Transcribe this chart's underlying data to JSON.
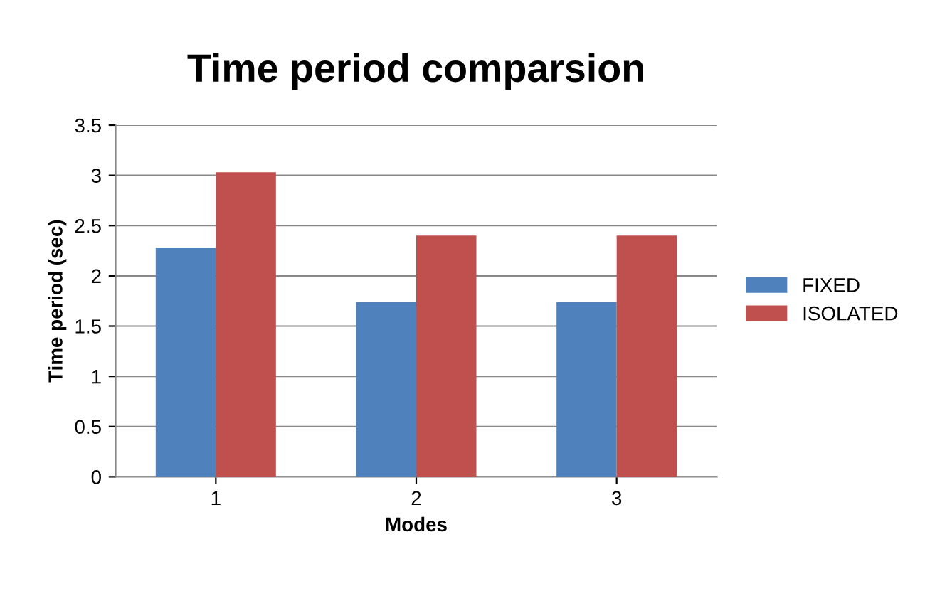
{
  "chart_data": {
    "type": "bar",
    "title": "Time period comparsion",
    "xlabel": "Modes",
    "ylabel": "Time period (sec)",
    "categories": [
      "1",
      "2",
      "3"
    ],
    "series": [
      {
        "name": "FIXED",
        "color": "#4f81bd",
        "values": [
          2.28,
          1.74,
          1.74
        ]
      },
      {
        "name": "ISOLATED",
        "color": "#c0504d",
        "values": [
          3.03,
          2.4,
          2.4
        ]
      }
    ],
    "ylim": [
      0,
      3.5
    ],
    "yticks": [
      0,
      0.5,
      1,
      1.5,
      2,
      2.5,
      3,
      3.5
    ],
    "grid": "y",
    "legend": "right"
  }
}
